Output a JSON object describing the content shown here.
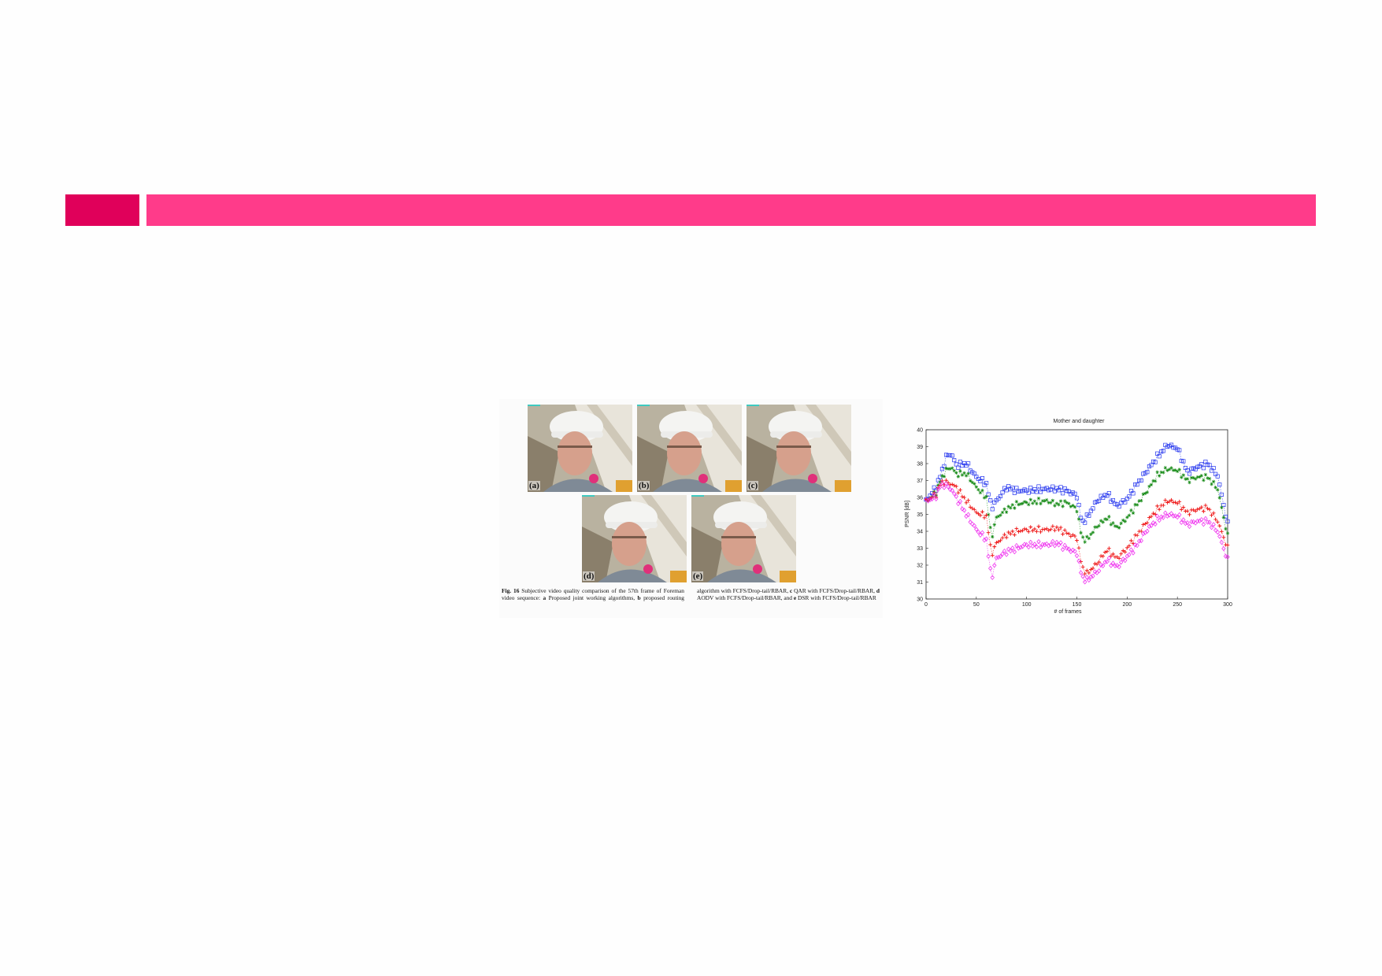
{
  "header": {
    "accent_color": "#e0005a",
    "bar_color": "#ff3b8a"
  },
  "figure": {
    "panels": [
      {
        "label": "(a)"
      },
      {
        "label": "(b)"
      },
      {
        "label": "(c)"
      },
      {
        "label": "(d)"
      },
      {
        "label": "(e)"
      }
    ],
    "caption": {
      "fig_num": "Fig. 16",
      "t1": " Subjective video quality comparison of the 57th frame of Foreman video sequence: ",
      "a": "a",
      "t2": " Proposed joint working algorithms, ",
      "b": "b",
      "t3": " proposed routing algorithm with FCFS/Drop-tail/RBAR, ",
      "c": "c",
      "t4": " QAR with FCFS/Drop-tail/RBAR, ",
      "d": "d",
      "t5": " AODV with FCFS/Drop-tail/RBAR, and ",
      "e": "e",
      "t6": " DSR with FCFS/Drop-tail/RBAR"
    }
  },
  "chart_data": {
    "type": "scatter",
    "title": "Mother and daughter",
    "xlabel": "# of frames",
    "ylabel": "PSNR [dB]",
    "xlim": [
      0,
      300
    ],
    "ylim": [
      30,
      40
    ],
    "xticks": [
      0,
      50,
      100,
      150,
      200,
      250,
      300
    ],
    "yticks": [
      30,
      31,
      32,
      33,
      34,
      35,
      36,
      37,
      38,
      39,
      40
    ],
    "x": [
      0,
      5,
      10,
      15,
      20,
      25,
      30,
      40,
      50,
      60,
      65,
      70,
      80,
      90,
      100,
      120,
      130,
      140,
      150,
      155,
      160,
      170,
      180,
      190,
      200,
      210,
      220,
      230,
      240,
      250,
      260,
      270,
      280,
      290,
      300
    ],
    "series": [
      {
        "marker": "square",
        "color": "#2233ee",
        "values": [
          35.8,
          36.2,
          36.6,
          37.4,
          38.4,
          38.6,
          37.9,
          38.0,
          37.2,
          36.8,
          35.4,
          35.8,
          36.6,
          36.4,
          36.4,
          36.5,
          36.5,
          36.4,
          36.1,
          34.5,
          34.8,
          35.8,
          36.2,
          35.5,
          35.9,
          36.8,
          37.6,
          38.4,
          39.1,
          38.9,
          37.5,
          37.8,
          38.0,
          37.3,
          34.4
        ]
      },
      {
        "marker": "star",
        "color": "#118811",
        "values": [
          35.8,
          36.0,
          36.3,
          37.1,
          37.6,
          37.8,
          37.4,
          37.4,
          36.6,
          36.0,
          33.6,
          34.8,
          35.3,
          35.6,
          35.7,
          35.8,
          35.6,
          35.7,
          35.3,
          33.6,
          33.5,
          34.3,
          34.8,
          34.2,
          34.8,
          35.6,
          36.4,
          37.3,
          37.7,
          37.6,
          37.0,
          37.2,
          37.2,
          36.5,
          33.7
        ]
      },
      {
        "marker": "plus",
        "color": "#ee1111",
        "values": [
          35.8,
          36.0,
          36.2,
          36.9,
          36.9,
          36.8,
          36.6,
          35.8,
          35.1,
          34.9,
          32.6,
          33.3,
          33.8,
          34.0,
          34.1,
          34.1,
          34.2,
          33.9,
          33.6,
          31.9,
          31.5,
          32.1,
          32.9,
          32.4,
          33.0,
          33.8,
          34.6,
          35.3,
          35.8,
          35.7,
          35.1,
          35.3,
          35.4,
          34.6,
          33.0
        ]
      },
      {
        "marker": "diamond",
        "color": "#ee22ee",
        "values": [
          35.8,
          35.9,
          36.1,
          36.8,
          36.7,
          36.5,
          36.0,
          35.0,
          34.1,
          33.5,
          31.2,
          32.4,
          32.8,
          33.0,
          33.2,
          33.2,
          33.3,
          33.0,
          32.7,
          31.3,
          31.1,
          31.6,
          32.3,
          31.9,
          32.5,
          33.2,
          34.1,
          34.7,
          35.0,
          34.9,
          34.4,
          34.6,
          34.6,
          34.0,
          32.3
        ]
      }
    ]
  }
}
